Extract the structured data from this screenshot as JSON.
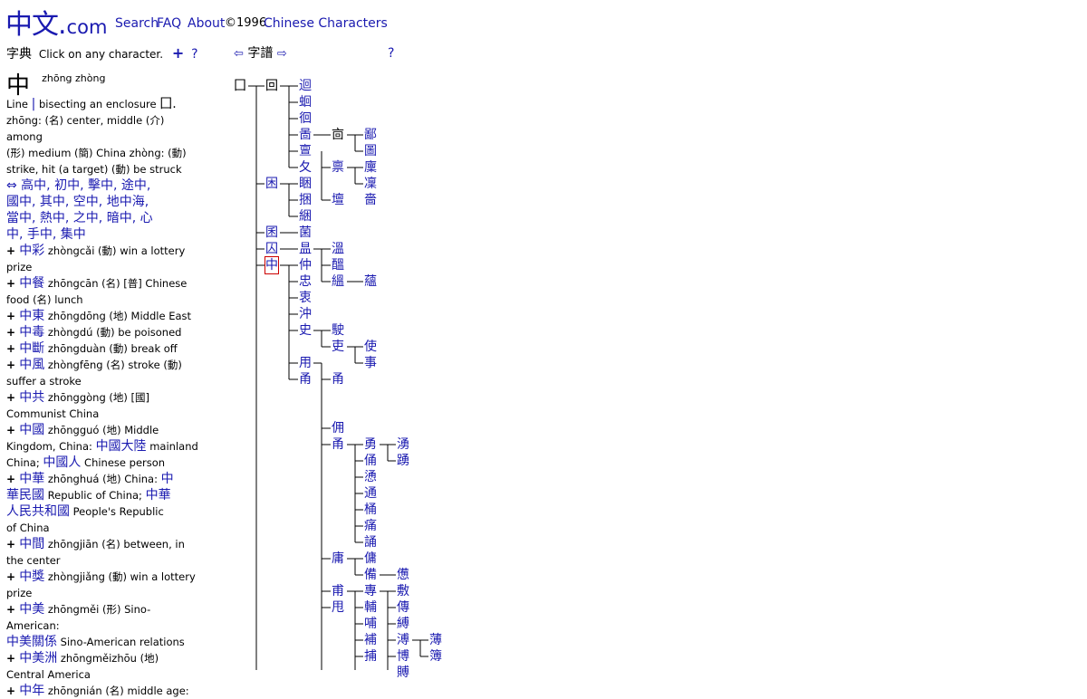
{
  "header": {
    "logo_zh": "中文",
    "logo_dot": ".",
    "logo_com": "com",
    "nav": [
      "Search",
      "FAQ",
      "About"
    ],
    "copyright": "©1996",
    "chinese_characters": "Chinese Characters"
  },
  "dictionary": {
    "title_zh": "字典",
    "instruction": "Click on any character.",
    "plus": "+",
    "help": "?",
    "char": "中",
    "char_pinyin": "zhōng zhòng",
    "lines": [
      [
        {
          "t": "Line ",
          "c": "b"
        },
        {
          "t": "|",
          "c": "z"
        },
        {
          "t": " bisecting an enclosure ",
          "c": "b"
        },
        {
          "t": "囗.",
          "c": "k"
        }
      ],
      [
        {
          "t": "zhōng: (名) center, middle (介) among",
          "c": "b"
        }
      ],
      [
        {
          "t": "(形) medium (簡) China zhòng: (動)",
          "c": "b"
        }
      ],
      [
        {
          "t": "strike, hit (a target) (動) be struck",
          "c": "b"
        }
      ],
      [
        {
          "t": "⇔ 高中, 初中, 擊中, 途中,",
          "c": "z"
        }
      ],
      [
        {
          "t": "國中, 其中, 空中, 地中海,",
          "c": "z"
        }
      ],
      [
        {
          "t": "當中, 熱中, 之中, 暗中, 心",
          "c": "z"
        }
      ],
      [
        {
          "t": "中, 手中, 集中",
          "c": "z"
        }
      ],
      [
        {
          "t": "+ ",
          "c": "p"
        },
        {
          "t": "中彩",
          "c": "z"
        },
        {
          "t": " zhòngcǎi (動) win a lottery",
          "c": "b"
        }
      ],
      [
        {
          "t": "prize",
          "c": "b"
        }
      ],
      [
        {
          "t": "+ ",
          "c": "p"
        },
        {
          "t": "中餐",
          "c": "z"
        },
        {
          "t": " zhōngcān (名) [普] Chinese",
          "c": "b"
        }
      ],
      [
        {
          "t": "food (名) lunch",
          "c": "b"
        }
      ],
      [
        {
          "t": "+ ",
          "c": "p"
        },
        {
          "t": "中東",
          "c": "z"
        },
        {
          "t": " zhōngdōng (地) Middle East",
          "c": "b"
        }
      ],
      [
        {
          "t": "+ ",
          "c": "p"
        },
        {
          "t": "中毒",
          "c": "z"
        },
        {
          "t": " zhòngdú (動) be poisoned",
          "c": "b"
        }
      ],
      [
        {
          "t": "+ ",
          "c": "p"
        },
        {
          "t": "中斷",
          "c": "z"
        },
        {
          "t": " zhōngduàn (動) break off",
          "c": "b"
        }
      ],
      [
        {
          "t": "+ ",
          "c": "p"
        },
        {
          "t": "中風",
          "c": "z"
        },
        {
          "t": " zhòngfēng (名) stroke (動)",
          "c": "b"
        }
      ],
      [
        {
          "t": "suffer a stroke",
          "c": "b"
        }
      ],
      [
        {
          "t": "+ ",
          "c": "p"
        },
        {
          "t": "中共",
          "c": "z"
        },
        {
          "t": " zhōnggòng (地) [國]",
          "c": "b"
        }
      ],
      [
        {
          "t": "Communist China",
          "c": "b"
        }
      ],
      [
        {
          "t": "+ ",
          "c": "p"
        },
        {
          "t": "中國",
          "c": "z"
        },
        {
          "t": " zhōngguó (地) Middle",
          "c": "b"
        }
      ],
      [
        {
          "t": "Kingdom, China: ",
          "c": "b"
        },
        {
          "t": "中國大陸",
          "c": "z"
        },
        {
          "t": " mainland",
          "c": "b"
        }
      ],
      [
        {
          "t": "China; ",
          "c": "b"
        },
        {
          "t": "中國人",
          "c": "z"
        },
        {
          "t": " Chinese person",
          "c": "b"
        }
      ],
      [
        {
          "t": "+ ",
          "c": "p"
        },
        {
          "t": "中華",
          "c": "z"
        },
        {
          "t": " zhōnghuá (地) China: ",
          "c": "b"
        },
        {
          "t": "中",
          "c": "z"
        }
      ],
      [
        {
          "t": "華民國",
          "c": "z"
        },
        {
          "t": " Republic of China; ",
          "c": "b"
        },
        {
          "t": "中華",
          "c": "z"
        }
      ],
      [
        {
          "t": "人民共和國",
          "c": "z"
        },
        {
          "t": " People's Republic",
          "c": "b"
        }
      ],
      [
        {
          "t": "of China",
          "c": "b"
        }
      ],
      [
        {
          "t": "+ ",
          "c": "p"
        },
        {
          "t": "中間",
          "c": "z"
        },
        {
          "t": " zhōngjiān (名) between, in",
          "c": "b"
        }
      ],
      [
        {
          "t": "the center",
          "c": "b"
        }
      ],
      [
        {
          "t": "+ ",
          "c": "p"
        },
        {
          "t": "中獎",
          "c": "z"
        },
        {
          "t": " zhòngjiǎng (動) win a lottery",
          "c": "b"
        }
      ],
      [
        {
          "t": "prize",
          "c": "b"
        }
      ],
      [
        {
          "t": "+ ",
          "c": "p"
        },
        {
          "t": "中美",
          "c": "z"
        },
        {
          "t": " zhōngměi (形) Sino-American:",
          "c": "b"
        }
      ],
      [
        {
          "t": "中美關係",
          "c": "z"
        },
        {
          "t": " Sino-American relations",
          "c": "b"
        }
      ],
      [
        {
          "t": "+ ",
          "c": "p"
        },
        {
          "t": "中美洲",
          "c": "z"
        },
        {
          "t": " zhōngměizhōu (地)",
          "c": "b"
        }
      ],
      [
        {
          "t": "Central America",
          "c": "b"
        }
      ],
      [
        {
          "t": "+ ",
          "c": "p"
        },
        {
          "t": "中年",
          "c": "z"
        },
        {
          "t": " zhōngnián (名) middle age:",
          "c": "b"
        }
      ]
    ]
  },
  "genealogy": {
    "prev_arrow": "⇦",
    "title_zh": "字譜",
    "next_arrow": "⇨",
    "help": "?",
    "nodes": [
      {
        "ch": "囗",
        "col": 0,
        "row": 0,
        "black": true
      },
      {
        "ch": "回",
        "col": 1,
        "row": 0,
        "black": true
      },
      {
        "ch": "迴",
        "col": 2,
        "row": 0
      },
      {
        "ch": "蛔",
        "col": 2,
        "row": 1
      },
      {
        "ch": "徊",
        "col": 2,
        "row": 2
      },
      {
        "ch": "啚",
        "col": 2,
        "row": 3
      },
      {
        "ch": "㐭",
        "col": 3,
        "row": 3,
        "black": true
      },
      {
        "ch": "鄙",
        "col": 4,
        "row": 3
      },
      {
        "ch": "圖",
        "col": 4,
        "row": 4
      },
      {
        "ch": "亶",
        "col": 2,
        "row": 4
      },
      {
        "ch": "夂",
        "col": 2,
        "row": 5
      },
      {
        "ch": "禀",
        "col": 3,
        "row": 5
      },
      {
        "ch": "廩",
        "col": 4,
        "row": 5
      },
      {
        "ch": "凜",
        "col": 4,
        "row": 6
      },
      {
        "ch": "困",
        "col": 1,
        "row": 6
      },
      {
        "ch": "睏",
        "col": 2,
        "row": 6
      },
      {
        "ch": "捆",
        "col": 2,
        "row": 7
      },
      {
        "ch": "壇",
        "col": 3,
        "row": 7
      },
      {
        "ch": "嗇",
        "col": 4,
        "row": 7
      },
      {
        "ch": "綑",
        "col": 2,
        "row": 8
      },
      {
        "ch": "囷",
        "col": 1,
        "row": 9
      },
      {
        "ch": "菌",
        "col": 2,
        "row": 9
      },
      {
        "ch": "囚",
        "col": 1,
        "row": 10
      },
      {
        "ch": "昷",
        "col": 2,
        "row": 10
      },
      {
        "ch": "溫",
        "col": 3,
        "row": 10
      },
      {
        "ch": "醞",
        "col": 3,
        "row": 11
      },
      {
        "ch": "中",
        "col": 1,
        "row": 11,
        "sel": true
      },
      {
        "ch": "仲",
        "col": 2,
        "row": 11
      },
      {
        "ch": "忠",
        "col": 2,
        "row": 12
      },
      {
        "ch": "縕",
        "col": 3,
        "row": 12
      },
      {
        "ch": "蘊",
        "col": 4,
        "row": 12
      },
      {
        "ch": "衷",
        "col": 2,
        "row": 13
      },
      {
        "ch": "沖",
        "col": 2,
        "row": 14
      },
      {
        "ch": "史",
        "col": 2,
        "row": 15
      },
      {
        "ch": "駛",
        "col": 3,
        "row": 15
      },
      {
        "ch": "吏",
        "col": 3,
        "row": 16
      },
      {
        "ch": "使",
        "col": 4,
        "row": 16
      },
      {
        "ch": "事",
        "col": 4,
        "row": 17
      },
      {
        "ch": "用",
        "col": 2,
        "row": 17
      },
      {
        "ch": "甬",
        "col": 2,
        "row": 18,
        "alt": "甹"
      },
      {
        "ch": "甬",
        "col": 3,
        "row": 18
      },
      {
        "ch": "佣",
        "col": 3,
        "row": 21
      },
      {
        "ch": "甬",
        "col": 3,
        "row": 22
      },
      {
        "ch": "勇",
        "col": 4,
        "row": 22
      },
      {
        "ch": "湧",
        "col": 5,
        "row": 22
      },
      {
        "ch": "俑",
        "col": 4,
        "row": 23
      },
      {
        "ch": "踴",
        "col": 5,
        "row": 23
      },
      {
        "ch": "慂",
        "col": 4,
        "row": 24
      },
      {
        "ch": "通",
        "col": 4,
        "row": 25
      },
      {
        "ch": "桶",
        "col": 4,
        "row": 26
      },
      {
        "ch": "痛",
        "col": 4,
        "row": 27
      },
      {
        "ch": "誦",
        "col": 4,
        "row": 28
      },
      {
        "ch": "庸",
        "col": 3,
        "row": 29
      },
      {
        "ch": "傭",
        "col": 4,
        "row": 29
      },
      {
        "ch": "備",
        "col": 4,
        "row": 30
      },
      {
        "ch": "憊",
        "col": 5,
        "row": 30
      },
      {
        "ch": "甫",
        "col": 3,
        "row": 31
      },
      {
        "ch": "專",
        "col": 4,
        "row": 31
      },
      {
        "ch": "敷",
        "col": 5,
        "row": 31
      },
      {
        "ch": "甩",
        "col": 3,
        "row": 32
      },
      {
        "ch": "輔",
        "col": 4,
        "row": 32
      },
      {
        "ch": "傳",
        "col": 5,
        "row": 32
      },
      {
        "ch": "哺",
        "col": 4,
        "row": 33
      },
      {
        "ch": "縛",
        "col": 5,
        "row": 33
      },
      {
        "ch": "補",
        "col": 4,
        "row": 34
      },
      {
        "ch": "溥",
        "col": 5,
        "row": 34
      },
      {
        "ch": "薄",
        "col": 6,
        "row": 34
      },
      {
        "ch": "捕",
        "col": 4,
        "row": 35
      },
      {
        "ch": "博",
        "col": 5,
        "row": 35
      },
      {
        "ch": "簿",
        "col": 6,
        "row": 35
      },
      {
        "ch": "賻",
        "col": 5,
        "row": 36
      }
    ]
  },
  "colors": {
    "link": "#1a1ab0",
    "selected_outline": "#cc0000"
  }
}
